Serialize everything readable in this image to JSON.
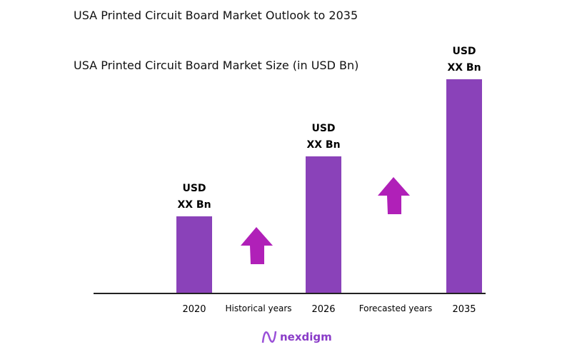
{
  "header": {
    "title": "USA Printed Circuit Board Market Outlook to 2035",
    "subtitle": "USA Printed Circuit Board Market Size (in USD Bn)"
  },
  "chart_data": {
    "type": "bar",
    "title": "USA Printed Circuit Board Market Size (in USD Bn)",
    "categories": [
      "2020",
      "2026",
      "2035"
    ],
    "values_relative": [
      36,
      64,
      100
    ],
    "data_labels": [
      [
        "USD",
        "XX Bn"
      ],
      [
        "USD",
        "XX Bn"
      ],
      [
        "USD",
        "XX Bn"
      ]
    ],
    "period_labels": [
      "Historical years",
      "Forecasted years"
    ],
    "annotations": [
      "up-arrow-icon",
      "up-arrow-icon"
    ],
    "grid": false,
    "legend": "none",
    "colors": {
      "bar": "#8a42b9",
      "arrow": "#b020b8",
      "axis": "#222222"
    }
  },
  "logo": {
    "text": "nexdigm"
  }
}
